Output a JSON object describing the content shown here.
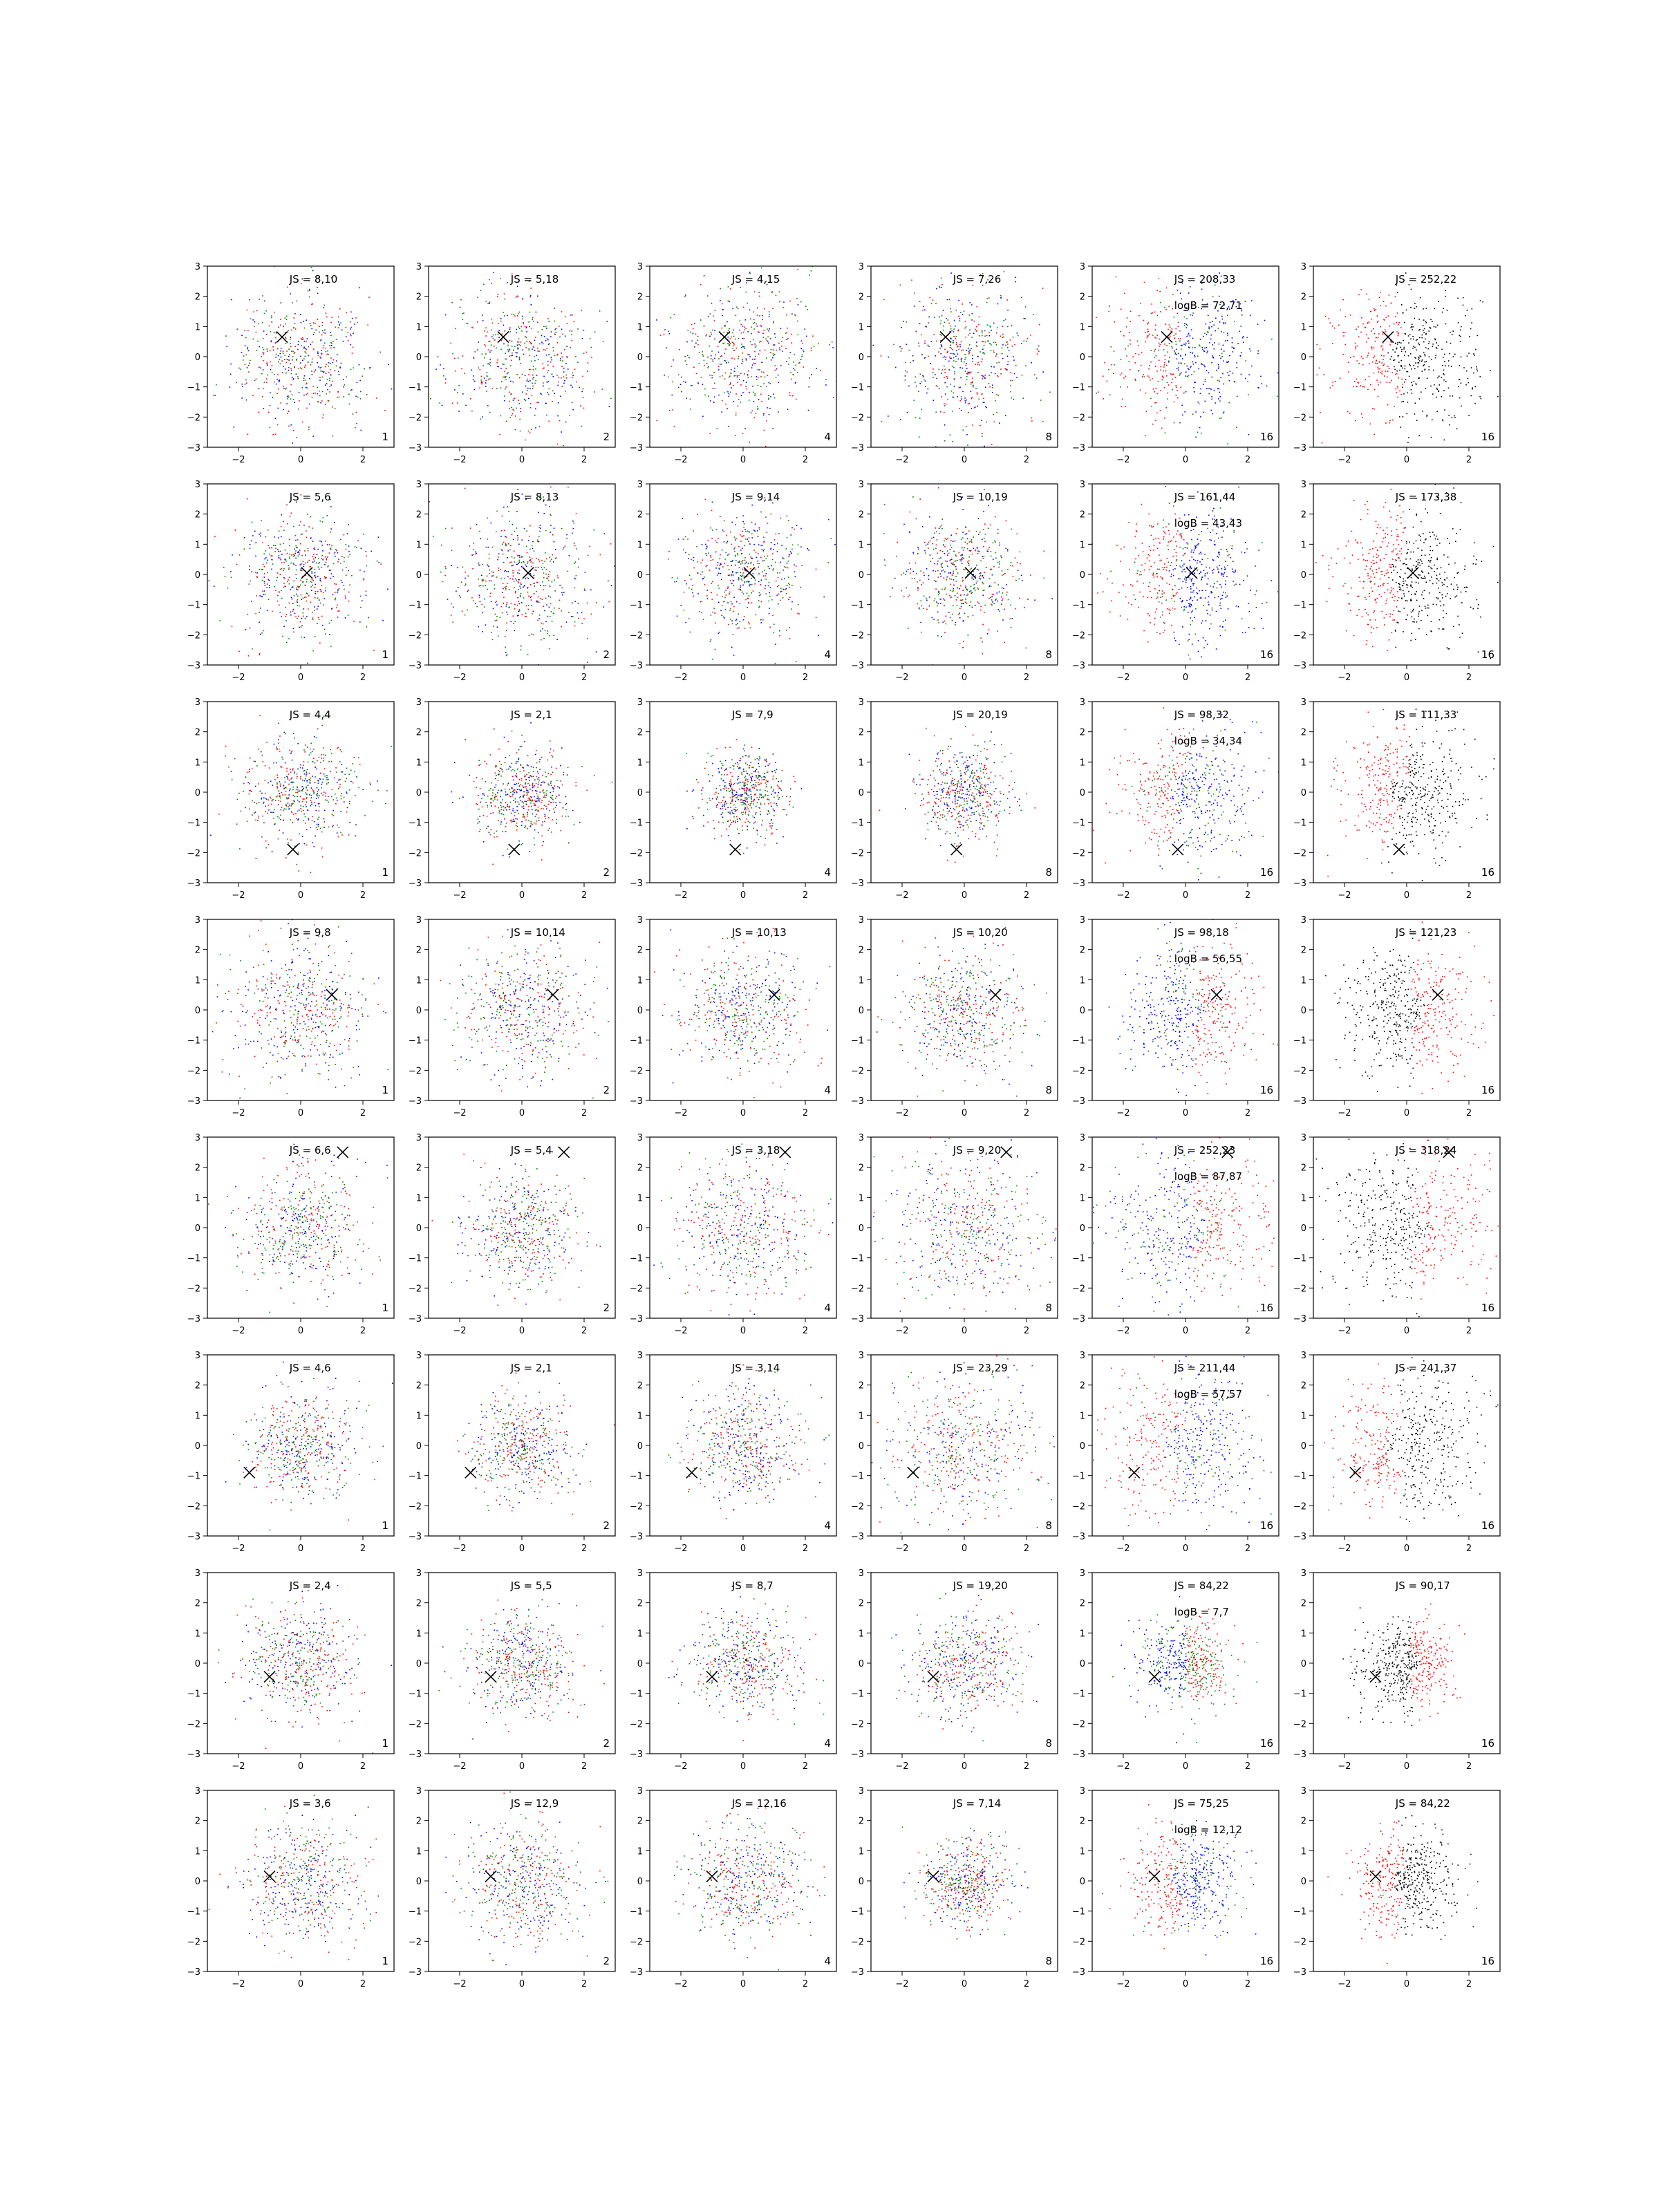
{
  "figure": {
    "background": "#ffffff",
    "series_colors": {
      "red": "#ff0000",
      "green": "#008000",
      "blue": "#0000ff",
      "black": "#000000"
    },
    "marker": "x-marker",
    "axis": {
      "xlim": [
        -3,
        3
      ],
      "ylim": [
        -3,
        3
      ],
      "xticks": [
        -2,
        0,
        2
      ],
      "yticks": [
        -3,
        -2,
        -1,
        0,
        1,
        2,
        3
      ]
    }
  },
  "chart_data": [
    {
      "type": "scatter",
      "row": 0,
      "col": 0,
      "js": "JS = 8,10",
      "logb": "",
      "n": "1",
      "mode": "rgb",
      "spread": 1.1,
      "marker": [
        -0.6,
        0.65
      ],
      "xlim": [
        -3,
        3
      ],
      "ylim": [
        -3,
        3
      ]
    },
    {
      "type": "scatter",
      "row": 0,
      "col": 1,
      "js": "JS = 5,18",
      "logb": "",
      "n": "2",
      "mode": "rgb",
      "spread": 1.2,
      "marker": [
        -0.6,
        0.65
      ],
      "xlim": [
        -3,
        3
      ],
      "ylim": [
        -3,
        3
      ]
    },
    {
      "type": "scatter",
      "row": 0,
      "col": 2,
      "js": "JS = 4,15",
      "logb": "",
      "n": "4",
      "mode": "rgb",
      "spread": 1.2,
      "marker": [
        -0.6,
        0.65
      ],
      "xlim": [
        -3,
        3
      ],
      "ylim": [
        -3,
        3
      ]
    },
    {
      "type": "scatter",
      "row": 0,
      "col": 3,
      "js": "JS = 7,26",
      "logb": "",
      "n": "8",
      "mode": "rgb",
      "spread": 1.2,
      "marker": [
        -0.6,
        0.65
      ],
      "xlim": [
        -3,
        3
      ],
      "ylim": [
        -3,
        3
      ]
    },
    {
      "type": "scatter",
      "row": 0,
      "col": 4,
      "js": "JS = 208,33",
      "logb": "logB = 72,71",
      "n": "16",
      "mode": "split",
      "spread": 1.15,
      "marker": [
        -0.6,
        0.65
      ],
      "dir": [
        -1,
        0
      ],
      "xlim": [
        -3,
        3
      ],
      "ylim": [
        -3,
        3
      ]
    },
    {
      "type": "scatter",
      "row": 0,
      "col": 5,
      "js": "JS = 252,22",
      "logb": "",
      "n": "16",
      "mode": "final",
      "spread": 1.15,
      "marker": [
        -0.6,
        0.65
      ],
      "dir": [
        -1,
        0
      ],
      "xlim": [
        -3,
        3
      ],
      "ylim": [
        -3,
        3
      ]
    },
    {
      "type": "scatter",
      "row": 1,
      "col": 0,
      "js": "JS = 5,6",
      "logb": "",
      "n": "1",
      "mode": "rgb",
      "spread": 1.0,
      "marker": [
        0.2,
        0.05
      ],
      "xlim": [
        -3,
        3
      ],
      "ylim": [
        -3,
        3
      ]
    },
    {
      "type": "scatter",
      "row": 1,
      "col": 1,
      "js": "JS = 8,13",
      "logb": "",
      "n": "2",
      "mode": "rgb",
      "spread": 1.2,
      "marker": [
        0.2,
        0.05
      ],
      "xlim": [
        -3,
        3
      ],
      "ylim": [
        -3,
        3
      ]
    },
    {
      "type": "scatter",
      "row": 1,
      "col": 2,
      "js": "JS = 9,14",
      "logb": "",
      "n": "4",
      "mode": "rgb",
      "spread": 1.0,
      "marker": [
        0.2,
        0.05
      ],
      "xlim": [
        -3,
        3
      ],
      "ylim": [
        -3,
        3
      ]
    },
    {
      "type": "scatter",
      "row": 1,
      "col": 3,
      "js": "JS = 10,19",
      "logb": "",
      "n": "8",
      "mode": "rgb",
      "spread": 1.0,
      "marker": [
        0.2,
        0.05
      ],
      "xlim": [
        -3,
        3
      ],
      "ylim": [
        -3,
        3
      ]
    },
    {
      "type": "scatter",
      "row": 1,
      "col": 4,
      "js": "JS = 161,44",
      "logb": "logB = 43,43",
      "n": "16",
      "mode": "split",
      "spread": 1.05,
      "marker": [
        0.2,
        0.05
      ],
      "dir": [
        -1,
        0.1
      ],
      "xlim": [
        -3,
        3
      ],
      "ylim": [
        -3,
        3
      ]
    },
    {
      "type": "scatter",
      "row": 1,
      "col": 5,
      "js": "JS = 173,38",
      "logb": "",
      "n": "16",
      "mode": "final",
      "spread": 1.1,
      "marker": [
        0.2,
        0.05
      ],
      "dir": [
        -1,
        0.1
      ],
      "xlim": [
        -3,
        3
      ],
      "ylim": [
        -3,
        3
      ]
    },
    {
      "type": "scatter",
      "row": 2,
      "col": 0,
      "js": "JS = 4,4",
      "logb": "",
      "n": "1",
      "mode": "rgb",
      "spread": 0.9,
      "marker": [
        -0.25,
        -1.9
      ],
      "xlim": [
        -3,
        3
      ],
      "ylim": [
        -3,
        3
      ]
    },
    {
      "type": "scatter",
      "row": 2,
      "col": 1,
      "js": "JS = 2,1",
      "logb": "",
      "n": "2",
      "mode": "rgb",
      "spread": 0.75,
      "marker": [
        -0.25,
        -1.9
      ],
      "xlim": [
        -3,
        3
      ],
      "ylim": [
        -3,
        3
      ]
    },
    {
      "type": "scatter",
      "row": 2,
      "col": 2,
      "js": "JS = 7,9",
      "logb": "",
      "n": "4",
      "mode": "rgb",
      "spread": 0.65,
      "marker": [
        -0.25,
        -1.9
      ],
      "xlim": [
        -3,
        3
      ],
      "ylim": [
        -3,
        3
      ]
    },
    {
      "type": "scatter",
      "row": 2,
      "col": 3,
      "js": "JS = 20,19",
      "logb": "",
      "n": "8",
      "mode": "rgb",
      "spread": 0.75,
      "marker": [
        -0.25,
        -1.9
      ],
      "xlim": [
        -3,
        3
      ],
      "ylim": [
        -3,
        3
      ]
    },
    {
      "type": "scatter",
      "row": 2,
      "col": 4,
      "js": "JS = 98,32",
      "logb": "logB = 34,34",
      "n": "16",
      "mode": "split",
      "spread": 1.05,
      "marker": [
        -0.25,
        -1.9
      ],
      "dir": [
        -1,
        0.2
      ],
      "xlim": [
        -3,
        3
      ],
      "ylim": [
        -3,
        3
      ]
    },
    {
      "type": "scatter",
      "row": 2,
      "col": 5,
      "js": "JS = 111,33",
      "logb": "",
      "n": "16",
      "mode": "final",
      "spread": 1.0,
      "marker": [
        -0.25,
        -1.9
      ],
      "dir": [
        -1,
        0.2
      ],
      "xlim": [
        -3,
        3
      ],
      "ylim": [
        -3,
        3
      ]
    },
    {
      "type": "scatter",
      "row": 3,
      "col": 0,
      "js": "JS = 9,8",
      "logb": "",
      "n": "1",
      "mode": "rgb",
      "spread": 1.1,
      "marker": [
        1.0,
        0.5
      ],
      "xlim": [
        -3,
        3
      ],
      "ylim": [
        -3,
        3
      ]
    },
    {
      "type": "scatter",
      "row": 3,
      "col": 1,
      "js": "JS = 10,14",
      "logb": "",
      "n": "2",
      "mode": "rgb",
      "spread": 1.1,
      "marker": [
        1.0,
        0.5
      ],
      "xlim": [
        -3,
        3
      ],
      "ylim": [
        -3,
        3
      ]
    },
    {
      "type": "scatter",
      "row": 3,
      "col": 2,
      "js": "JS = 10,13",
      "logb": "",
      "n": "4",
      "mode": "rgb",
      "spread": 1.05,
      "marker": [
        1.0,
        0.5
      ],
      "xlim": [
        -3,
        3
      ],
      "ylim": [
        -3,
        3
      ]
    },
    {
      "type": "scatter",
      "row": 3,
      "col": 3,
      "js": "JS = 10,20",
      "logb": "",
      "n": "8",
      "mode": "rgb",
      "spread": 1.0,
      "marker": [
        1.0,
        0.5
      ],
      "xlim": [
        -3,
        3
      ],
      "ylim": [
        -3,
        3
      ]
    },
    {
      "type": "scatter",
      "row": 3,
      "col": 4,
      "js": "JS = 98,18",
      "logb": "logB = 56,55",
      "n": "16",
      "mode": "split",
      "spread": 1.05,
      "marker": [
        1.0,
        0.5
      ],
      "dir": [
        1,
        0
      ],
      "xlim": [
        -3,
        3
      ],
      "ylim": [
        -3,
        3
      ]
    },
    {
      "type": "scatter",
      "row": 3,
      "col": 5,
      "js": "JS = 121,23",
      "logb": "",
      "n": "16",
      "mode": "final",
      "spread": 1.05,
      "marker": [
        1.0,
        0.5
      ],
      "dir": [
        1,
        0
      ],
      "xlim": [
        -3,
        3
      ],
      "ylim": [
        -3,
        3
      ]
    },
    {
      "type": "scatter",
      "row": 4,
      "col": 0,
      "js": "JS = 6,6",
      "logb": "",
      "n": "1",
      "mode": "rgb",
      "spread": 1.0,
      "marker": [
        1.35,
        2.5
      ],
      "xlim": [
        -3,
        3
      ],
      "ylim": [
        -3,
        3
      ]
    },
    {
      "type": "scatter",
      "row": 4,
      "col": 1,
      "js": "JS = 5,4",
      "logb": "",
      "n": "2",
      "mode": "rgb",
      "spread": 0.9,
      "marker": [
        1.35,
        2.5
      ],
      "xlim": [
        -3,
        3
      ],
      "ylim": [
        -3,
        3
      ]
    },
    {
      "type": "scatter",
      "row": 4,
      "col": 2,
      "js": "JS = 3,18",
      "logb": "",
      "n": "4",
      "mode": "rgb",
      "spread": 1.2,
      "marker": [
        1.35,
        2.5
      ],
      "xlim": [
        -3,
        3
      ],
      "ylim": [
        -3,
        3
      ]
    },
    {
      "type": "scatter",
      "row": 4,
      "col": 3,
      "js": "JS = 9,20",
      "logb": "",
      "n": "8",
      "mode": "rgb",
      "spread": 1.25,
      "marker": [
        1.35,
        2.5
      ],
      "xlim": [
        -3,
        3
      ],
      "ylim": [
        -3,
        3
      ]
    },
    {
      "type": "scatter",
      "row": 4,
      "col": 4,
      "js": "JS = 252,23",
      "logb": "logB = 87,87",
      "n": "16",
      "mode": "split",
      "spread": 1.25,
      "marker": [
        1.35,
        2.5
      ],
      "dir": [
        1,
        0
      ],
      "xlim": [
        -3,
        3
      ],
      "ylim": [
        -3,
        3
      ]
    },
    {
      "type": "scatter",
      "row": 4,
      "col": 5,
      "js": "JS = 318,24",
      "logb": "",
      "n": "16",
      "mode": "final",
      "spread": 1.25,
      "marker": [
        1.35,
        2.5
      ],
      "dir": [
        1,
        0
      ],
      "xlim": [
        -3,
        3
      ],
      "ylim": [
        -3,
        3
      ]
    },
    {
      "type": "scatter",
      "row": 5,
      "col": 0,
      "js": "JS = 4,6",
      "logb": "",
      "n": "1",
      "mode": "rgb",
      "spread": 0.9,
      "marker": [
        -1.65,
        -0.9
      ],
      "xlim": [
        -3,
        3
      ],
      "ylim": [
        -3,
        3
      ]
    },
    {
      "type": "scatter",
      "row": 5,
      "col": 1,
      "js": "JS = 2,1",
      "logb": "",
      "n": "2",
      "mode": "rgb",
      "spread": 0.8,
      "marker": [
        -1.65,
        -0.9
      ],
      "xlim": [
        -3,
        3
      ],
      "ylim": [
        -3,
        3
      ]
    },
    {
      "type": "scatter",
      "row": 5,
      "col": 2,
      "js": "JS = 3,14",
      "logb": "",
      "n": "4",
      "mode": "rgb",
      "spread": 0.95,
      "marker": [
        -1.65,
        -0.9
      ],
      "xlim": [
        -3,
        3
      ],
      "ylim": [
        -3,
        3
      ]
    },
    {
      "type": "scatter",
      "row": 5,
      "col": 3,
      "js": "JS = 23,29",
      "logb": "",
      "n": "8",
      "mode": "rgb",
      "spread": 1.2,
      "marker": [
        -1.65,
        -0.9
      ],
      "xlim": [
        -3,
        3
      ],
      "ylim": [
        -3,
        3
      ]
    },
    {
      "type": "scatter",
      "row": 5,
      "col": 4,
      "js": "JS = 211,44",
      "logb": "logB = 57,57",
      "n": "16",
      "mode": "split",
      "spread": 1.2,
      "marker": [
        -1.65,
        -0.9
      ],
      "dir": [
        -1,
        0
      ],
      "xlim": [
        -3,
        3
      ],
      "ylim": [
        -3,
        3
      ]
    },
    {
      "type": "scatter",
      "row": 5,
      "col": 5,
      "js": "JS = 241,37",
      "logb": "",
      "n": "16",
      "mode": "final",
      "spread": 1.2,
      "marker": [
        -1.65,
        -0.9
      ],
      "dir": [
        -1,
        0
      ],
      "xlim": [
        -3,
        3
      ],
      "ylim": [
        -3,
        3
      ]
    },
    {
      "type": "scatter",
      "row": 6,
      "col": 0,
      "js": "JS = 2,4",
      "logb": "",
      "n": "1",
      "mode": "rgb",
      "spread": 0.9,
      "marker": [
        -1.0,
        -0.45
      ],
      "xlim": [
        -3,
        3
      ],
      "ylim": [
        -3,
        3
      ]
    },
    {
      "type": "scatter",
      "row": 6,
      "col": 1,
      "js": "JS = 5,5",
      "logb": "",
      "n": "2",
      "mode": "rgb",
      "spread": 0.85,
      "marker": [
        -1.0,
        -0.45
      ],
      "xlim": [
        -3,
        3
      ],
      "ylim": [
        -3,
        3
      ]
    },
    {
      "type": "scatter",
      "row": 6,
      "col": 2,
      "js": "JS = 8,7",
      "logb": "",
      "n": "4",
      "mode": "rgb",
      "spread": 0.85,
      "marker": [
        -1.0,
        -0.45
      ],
      "xlim": [
        -3,
        3
      ],
      "ylim": [
        -3,
        3
      ]
    },
    {
      "type": "scatter",
      "row": 6,
      "col": 3,
      "js": "JS = 19,20",
      "logb": "",
      "n": "8",
      "mode": "rgb",
      "spread": 0.85,
      "marker": [
        -1.0,
        -0.45
      ],
      "xlim": [
        -3,
        3
      ],
      "ylim": [
        -3,
        3
      ]
    },
    {
      "type": "scatter",
      "row": 6,
      "col": 4,
      "js": "JS = 84,22",
      "logb": "logB = 7,7",
      "n": "16",
      "mode": "split",
      "spread": 0.7,
      "marker": [
        -1.0,
        -0.45
      ],
      "dir": [
        1,
        0
      ],
      "swap": true,
      "xlim": [
        -3,
        3
      ],
      "ylim": [
        -3,
        3
      ]
    },
    {
      "type": "scatter",
      "row": 6,
      "col": 5,
      "js": "JS = 90,17",
      "logb": "",
      "n": "16",
      "mode": "final",
      "spread": 0.75,
      "marker": [
        -1.0,
        -0.45
      ],
      "dir": [
        1,
        0
      ],
      "xlim": [
        -3,
        3
      ],
      "ylim": [
        -3,
        3
      ]
    },
    {
      "type": "scatter",
      "row": 7,
      "col": 0,
      "js": "JS = 3,6",
      "logb": "",
      "n": "1",
      "mode": "rgb",
      "spread": 1.0,
      "marker": [
        -1.0,
        0.15
      ],
      "xlim": [
        -3,
        3
      ],
      "ylim": [
        -3,
        3
      ]
    },
    {
      "type": "scatter",
      "row": 7,
      "col": 1,
      "js": "JS = 12,9",
      "logb": "",
      "n": "2",
      "mode": "rgb",
      "spread": 1.0,
      "marker": [
        -1.0,
        0.15
      ],
      "xlim": [
        -3,
        3
      ],
      "ylim": [
        -3,
        3
      ]
    },
    {
      "type": "scatter",
      "row": 7,
      "col": 2,
      "js": "JS = 12,16",
      "logb": "",
      "n": "4",
      "mode": "rgb",
      "spread": 0.95,
      "marker": [
        -1.0,
        0.15
      ],
      "xlim": [
        -3,
        3
      ],
      "ylim": [
        -3,
        3
      ]
    },
    {
      "type": "scatter",
      "row": 7,
      "col": 3,
      "js": "JS = 7,14",
      "logb": "",
      "n": "8",
      "mode": "rgb",
      "spread": 0.7,
      "marker": [
        -1.0,
        0.15
      ],
      "xlim": [
        -3,
        3
      ],
      "ylim": [
        -3,
        3
      ]
    },
    {
      "type": "scatter",
      "row": 7,
      "col": 4,
      "js": "JS = 75,25",
      "logb": "logB = 12,12",
      "n": "16",
      "mode": "split",
      "spread": 0.85,
      "marker": [
        -1.0,
        0.15
      ],
      "dir": [
        -1,
        0
      ],
      "xlim": [
        -3,
        3
      ],
      "ylim": [
        -3,
        3
      ]
    },
    {
      "type": "scatter",
      "row": 7,
      "col": 5,
      "js": "JS = 84,22",
      "logb": "",
      "n": "16",
      "mode": "final",
      "spread": 0.8,
      "marker": [
        -1.0,
        0.15
      ],
      "dir": [
        -1,
        0
      ],
      "xlim": [
        -3,
        3
      ],
      "ylim": [
        -3,
        3
      ]
    }
  ]
}
